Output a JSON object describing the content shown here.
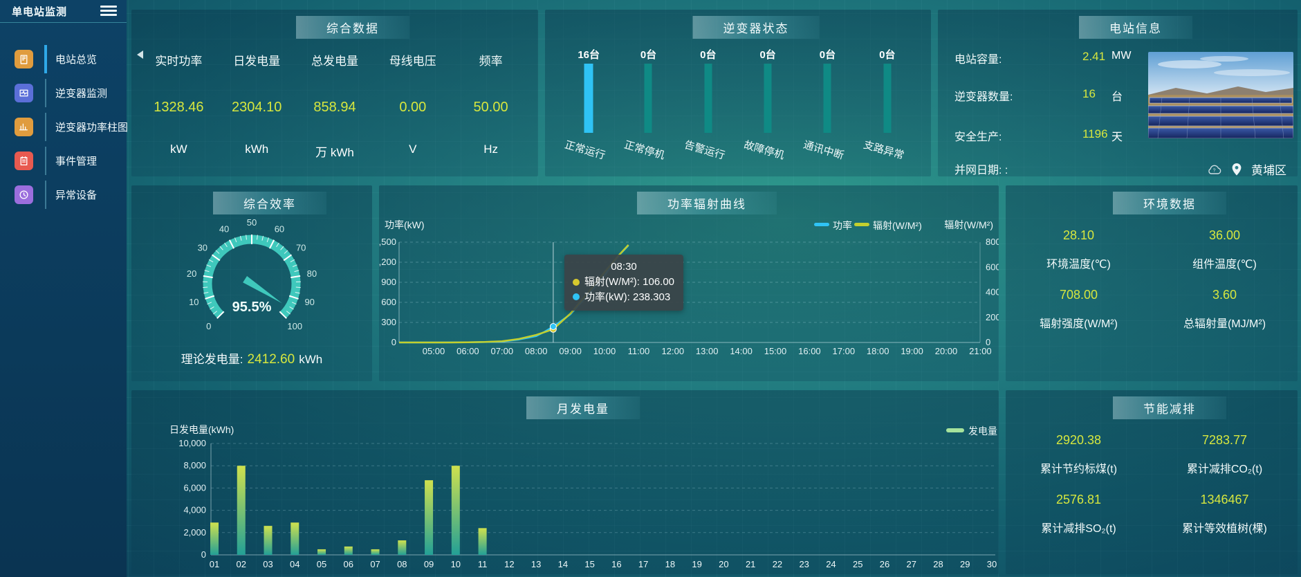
{
  "sidebar": {
    "title": "单电站监测",
    "items": [
      {
        "label": "电站总览",
        "icon": "overview-icon",
        "color": "#e09c3e",
        "active": true
      },
      {
        "label": "逆变器监测",
        "icon": "inverter-monitor-icon",
        "color": "#5b6fd8",
        "active": false
      },
      {
        "label": "逆变器功率柱图",
        "icon": "power-bars-icon",
        "color": "#e09c3e",
        "active": false
      },
      {
        "label": "事件管理",
        "icon": "event-manage-icon",
        "color": "#e85a50",
        "active": false
      },
      {
        "label": "异常设备",
        "icon": "abnormal-device-icon",
        "color": "#9b6edd",
        "active": false
      }
    ]
  },
  "summary": {
    "title": "综合数据",
    "metrics": [
      {
        "label": "实时功率",
        "value": "1328.46",
        "unit": "kW"
      },
      {
        "label": "日发电量",
        "value": "2304.10",
        "unit": "kWh"
      },
      {
        "label": "总发电量",
        "value": "858.94",
        "unit": "万 kWh"
      },
      {
        "label": "母线电压",
        "value": "0.00",
        "unit": "V"
      },
      {
        "label": "频率",
        "value": "50.00",
        "unit": "Hz"
      }
    ]
  },
  "inverter_status": {
    "title": "逆变器状态",
    "items": [
      {
        "count": "16台",
        "label": "正常运行",
        "highlight": true
      },
      {
        "count": "0台",
        "label": "正常停机",
        "highlight": false
      },
      {
        "count": "0台",
        "label": "告警运行",
        "highlight": false
      },
      {
        "count": "0台",
        "label": "故障停机",
        "highlight": false
      },
      {
        "count": "0台",
        "label": "通讯中断",
        "highlight": false
      },
      {
        "count": "0台",
        "label": "支路异常",
        "highlight": false
      }
    ]
  },
  "station_info": {
    "title": "电站信息",
    "rows": [
      {
        "label": "电站容量:",
        "value": "2.41",
        "unit": "MW"
      },
      {
        "label": "逆变器数量:",
        "value": "16",
        "unit": "台"
      },
      {
        "label": "安全生产:",
        "value": "1196",
        "unit": "天"
      }
    ],
    "grid_date_label": "并网日期:  :",
    "location": "黄埔区"
  },
  "efficiency": {
    "title": "综合效率",
    "gauge_value": 95.5,
    "gauge_label": "95.5%",
    "gauge_ticks": [
      "0",
      "10",
      "20",
      "30",
      "40",
      "50",
      "60",
      "70",
      "80",
      "90",
      "100"
    ],
    "footer_label": "理论发电量:",
    "footer_value": "2412.60",
    "footer_unit": "kWh"
  },
  "environment": {
    "title": "环境数据",
    "metrics": [
      {
        "value": "28.10",
        "label": "环境温度(℃)"
      },
      {
        "value": "36.00",
        "label": "组件温度(℃)"
      },
      {
        "value": "708.00",
        "label": "辐射强度(W/M²)"
      },
      {
        "value": "3.60",
        "label": "总辐射量(MJ/M²)"
      }
    ]
  },
  "saving": {
    "title": "节能减排",
    "metrics": [
      {
        "value": "2920.38",
        "label": "累计节约标煤(t)"
      },
      {
        "value": "7283.77",
        "label": "累计减排CO₂(t)"
      },
      {
        "value": "2576.81",
        "label": "累计减排SO₂(t)"
      },
      {
        "value": "1346467",
        "label": "累计等效植树(棵)"
      }
    ]
  },
  "chart_data": [
    {
      "id": "power_radiation",
      "type": "line",
      "title": "功率辐射曲线",
      "left_axis": {
        "label": "功率(kW)",
        "tick_labels": [
          "1,500",
          "1,200",
          "900",
          "600",
          "300",
          "0"
        ],
        "max": 1500
      },
      "right_axis": {
        "label": "辐射(W/M²)",
        "tick_labels": [
          "800",
          "600",
          "400",
          "200",
          "0"
        ],
        "max": 800
      },
      "x_labels": [
        "05:00",
        "06:00",
        "07:00",
        "08:00",
        "09:00",
        "10:00",
        "11:00",
        "12:00",
        "13:00",
        "14:00",
        "15:00",
        "16:00",
        "17:00",
        "18:00",
        "19:00",
        "20:00",
        "21:00"
      ],
      "x_range_hours": [
        5,
        21
      ],
      "legend": [
        {
          "name": "功率",
          "color": "#2fc3f5"
        },
        {
          "name": "辐射(W/M²)",
          "color": "#c3cf2e"
        }
      ],
      "series": [
        {
          "name": "功率",
          "axis": "left",
          "color": "#2fc3f5",
          "points": [
            [
              5,
              0
            ],
            [
              5.5,
              1
            ],
            [
              6,
              2
            ],
            [
              6.5,
              6
            ],
            [
              7,
              15
            ],
            [
              7.5,
              45
            ],
            [
              8,
              95
            ],
            [
              8.25,
              160
            ],
            [
              8.5,
              238.3
            ],
            [
              9,
              420
            ],
            [
              9.5,
              700
            ],
            [
              10,
              1000
            ],
            [
              10.4,
              1290
            ],
            [
              10.7,
              1450
            ]
          ]
        },
        {
          "name": "辐射(W/M²)",
          "axis": "right",
          "color": "#c3cf2e",
          "points": [
            [
              5,
              0
            ],
            [
              5.5,
              0
            ],
            [
              6,
              1
            ],
            [
              6.5,
              4
            ],
            [
              7,
              10
            ],
            [
              7.5,
              28
            ],
            [
              8,
              60
            ],
            [
              8.25,
              82
            ],
            [
              8.5,
              106
            ],
            [
              9,
              230
            ],
            [
              9.5,
              390
            ],
            [
              10,
              560
            ],
            [
              10.4,
              690
            ],
            [
              10.7,
              778
            ]
          ]
        }
      ],
      "tooltip": {
        "time": "08:30",
        "hour": 8.5,
        "rows": [
          {
            "label": "辐射(W/M²)",
            "value": "106.00",
            "color": "#d6c92e"
          },
          {
            "label": "功率(kW)",
            "value": "238.303",
            "color": "#2fc3f5"
          }
        ]
      }
    },
    {
      "id": "monthly_generation",
      "type": "bar",
      "title": "月发电量",
      "ylabel": "日发电量(kWh)",
      "y_tick_labels": [
        "10,000",
        "8,000",
        "6,000",
        "4,000",
        "2,000",
        "0"
      ],
      "ylim": [
        0,
        10000
      ],
      "legend": [
        {
          "name": "发电量",
          "color": "#a6e39c"
        }
      ],
      "categories": [
        "01",
        "02",
        "03",
        "04",
        "05",
        "06",
        "07",
        "08",
        "09",
        "10",
        "11",
        "12",
        "13",
        "14",
        "15",
        "16",
        "17",
        "18",
        "19",
        "20",
        "21",
        "22",
        "23",
        "24",
        "25",
        "26",
        "27",
        "28",
        "29",
        "30"
      ],
      "values": [
        2900,
        8000,
        2600,
        2900,
        500,
        750,
        500,
        1300,
        6700,
        8000,
        2400,
        0,
        0,
        0,
        0,
        0,
        0,
        0,
        0,
        0,
        0,
        0,
        0,
        0,
        0,
        0,
        0,
        0,
        0,
        0
      ],
      "bar_gradient": [
        "#cfe14e",
        "#23a096"
      ]
    }
  ]
}
